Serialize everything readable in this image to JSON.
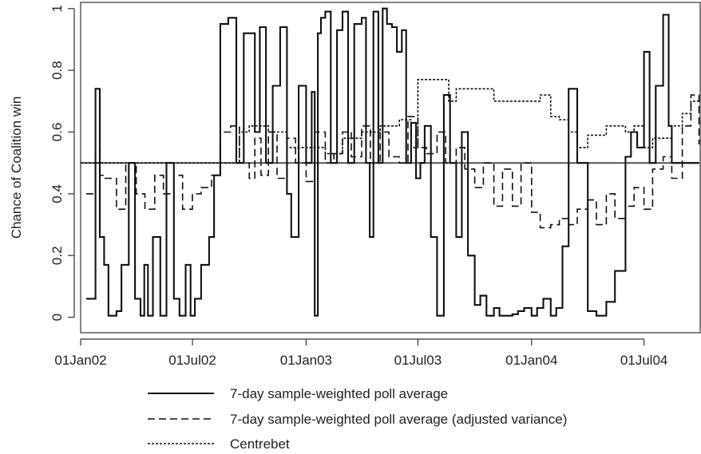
{
  "chart_data": {
    "type": "line",
    "ylabel": "Chance of Coalition win",
    "xlabel": "",
    "ylim": [
      -0.05,
      1.02
    ],
    "xlim": [
      "2002-01-01",
      "2004-09-30"
    ],
    "x_ticks": [
      {
        "date": "2002-01-01",
        "label": "01Jan02"
      },
      {
        "date": "2002-07-01",
        "label": "01Jul02"
      },
      {
        "date": "2003-01-01",
        "label": "01Jan03"
      },
      {
        "date": "2003-07-01",
        "label": "01Jul03"
      },
      {
        "date": "2004-01-01",
        "label": "01Jan04"
      },
      {
        "date": "2004-07-01",
        "label": "01Jul04"
      }
    ],
    "y_ticks": [
      {
        "value": 0,
        "label": "0"
      },
      {
        "value": 0.2,
        "label": "0.2"
      },
      {
        "value": 0.4,
        "label": "0.4"
      },
      {
        "value": 0.6,
        "label": "0.6"
      },
      {
        "value": 0.8,
        "label": "0.8"
      },
      {
        "value": 1,
        "label": "1"
      }
    ],
    "reference_line": 0.5,
    "grid": false,
    "legend_position": "bottom",
    "series": [
      {
        "name": "7-day sample-weighted poll average",
        "style": "solid",
        "x": [
          "2002-01-10",
          "2002-01-25",
          "2002-02-01",
          "2002-02-08",
          "2002-02-15",
          "2002-02-28",
          "2002-03-08",
          "2002-03-20",
          "2002-03-30",
          "2002-04-08",
          "2002-04-14",
          "2002-04-20",
          "2002-04-28",
          "2002-05-10",
          "2002-05-20",
          "2002-06-01",
          "2002-06-10",
          "2002-06-20",
          "2002-06-28",
          "2002-07-05",
          "2002-07-15",
          "2002-07-28",
          "2002-08-05",
          "2002-08-15",
          "2002-08-28",
          "2002-09-10",
          "2002-09-22",
          "2002-10-02",
          "2002-10-10",
          "2002-10-18",
          "2002-10-28",
          "2002-11-08",
          "2002-11-20",
          "2002-12-01",
          "2002-12-08",
          "2002-12-20",
          "2003-01-01",
          "2003-01-10",
          "2003-01-15",
          "2003-01-20",
          "2003-01-25",
          "2003-02-01",
          "2003-02-10",
          "2003-02-20",
          "2003-03-01",
          "2003-03-10",
          "2003-03-20",
          "2003-04-01",
          "2003-04-08",
          "2003-04-14",
          "2003-04-20",
          "2003-04-28",
          "2003-05-05",
          "2003-05-12",
          "2003-05-20",
          "2003-05-28",
          "2003-06-05",
          "2003-06-12",
          "2003-06-20",
          "2003-06-28",
          "2003-07-05",
          "2003-07-12",
          "2003-07-22",
          "2003-08-01",
          "2003-08-12",
          "2003-08-22",
          "2003-09-01",
          "2003-09-10",
          "2003-09-20",
          "2003-10-01",
          "2003-10-10",
          "2003-10-20",
          "2003-11-01",
          "2003-11-10",
          "2003-11-20",
          "2003-12-01",
          "2003-12-10",
          "2003-12-20",
          "2004-01-01",
          "2004-01-10",
          "2004-01-20",
          "2004-02-01",
          "2004-02-10",
          "2004-02-20",
          "2004-03-01",
          "2004-03-15",
          "2004-04-01",
          "2004-04-15",
          "2004-05-01",
          "2004-05-15",
          "2004-06-01",
          "2004-06-10",
          "2004-06-20",
          "2004-07-01",
          "2004-07-10",
          "2004-07-20",
          "2004-08-01",
          "2004-08-10",
          "2004-08-15",
          "2004-08-20",
          "2004-08-25",
          "2004-09-01",
          "2004-09-10",
          "2004-09-20",
          "2004-09-28"
        ],
        "y": [
          0.06,
          0.74,
          0.26,
          0.17,
          0.005,
          0.02,
          0.17,
          0.5,
          0.06,
          0.005,
          0.17,
          0.005,
          0.26,
          0.005,
          0.5,
          0.06,
          0.005,
          0.17,
          0.005,
          0.06,
          0.17,
          0.26,
          0.46,
          0.95,
          0.97,
          0.5,
          0.92,
          0.92,
          0.6,
          0.94,
          0.5,
          0.75,
          0.94,
          0.4,
          0.26,
          0.75,
          0.5,
          0.73,
          0.005,
          0.92,
          0.97,
          0.99,
          0.5,
          0.93,
          0.99,
          0.5,
          0.95,
          0.97,
          0.5,
          0.26,
          0.99,
          0.5,
          1.0,
          0.95,
          0.94,
          0.86,
          0.93,
          0.5,
          0.63,
          0.45,
          0.5,
          0.62,
          0.26,
          0.005,
          0.72,
          0.5,
          0.26,
          0.6,
          0.2,
          0.04,
          0.07,
          0.005,
          0.03,
          0.005,
          0.005,
          0.01,
          0.02,
          0.03,
          0.005,
          0.03,
          0.06,
          0.005,
          0.03,
          0.23,
          0.74,
          0.5,
          0.02,
          0.005,
          0.05,
          0.15,
          0.52,
          0.6,
          0.55,
          0.86,
          0.5,
          0.75,
          0.98,
          0.62,
          0.5,
          0.5,
          0.5,
          0.5,
          0.5,
          0.5,
          0.5
        ]
      },
      {
        "name": "7-day sample-weighted poll average (adjusted variance)",
        "style": "dashed",
        "x": [
          "2002-01-10",
          "2002-01-25",
          "2002-02-01",
          "2002-02-08",
          "2002-02-28",
          "2002-03-15",
          "2002-04-01",
          "2002-04-15",
          "2002-05-01",
          "2002-05-15",
          "2002-06-01",
          "2002-06-15",
          "2002-07-01",
          "2002-07-15",
          "2002-08-01",
          "2002-08-15",
          "2002-09-01",
          "2002-09-15",
          "2002-10-01",
          "2002-10-10",
          "2002-10-20",
          "2002-11-01",
          "2002-11-15",
          "2002-12-01",
          "2002-12-15",
          "2003-01-01",
          "2003-01-15",
          "2003-02-01",
          "2003-02-15",
          "2003-03-01",
          "2003-03-15",
          "2003-04-01",
          "2003-04-15",
          "2003-05-01",
          "2003-05-15",
          "2003-06-01",
          "2003-06-15",
          "2003-07-01",
          "2003-07-15",
          "2003-08-01",
          "2003-08-15",
          "2003-09-01",
          "2003-09-15",
          "2003-10-01",
          "2003-10-15",
          "2003-11-01",
          "2003-11-15",
          "2003-12-01",
          "2003-12-15",
          "2004-01-01",
          "2004-01-15",
          "2004-02-01",
          "2004-02-15",
          "2004-03-01",
          "2004-03-15",
          "2004-04-01",
          "2004-04-15",
          "2004-05-01",
          "2004-05-15",
          "2004-06-01",
          "2004-06-15",
          "2004-07-01",
          "2004-07-15",
          "2004-08-01",
          "2004-08-15",
          "2004-09-01",
          "2004-09-15",
          "2004-09-28"
        ],
        "y": [
          0.4,
          0.54,
          0.46,
          0.45,
          0.35,
          0.5,
          0.4,
          0.35,
          0.46,
          0.4,
          0.46,
          0.35,
          0.4,
          0.42,
          0.46,
          0.6,
          0.62,
          0.5,
          0.45,
          0.58,
          0.46,
          0.6,
          0.45,
          0.58,
          0.5,
          0.44,
          0.6,
          0.5,
          0.53,
          0.6,
          0.52,
          0.62,
          0.5,
          0.6,
          0.52,
          0.5,
          0.65,
          0.55,
          0.53,
          0.6,
          0.5,
          0.55,
          0.48,
          0.42,
          0.5,
          0.36,
          0.48,
          0.36,
          0.5,
          0.34,
          0.29,
          0.3,
          0.32,
          0.3,
          0.35,
          0.38,
          0.3,
          0.4,
          0.32,
          0.36,
          0.42,
          0.35,
          0.48,
          0.52,
          0.45,
          0.62,
          0.72,
          0.56
        ]
      },
      {
        "name": "Centrebet",
        "style": "dotted",
        "x": [
          "2002-01-01",
          "2002-09-10",
          "2002-09-15",
          "2002-10-01",
          "2002-11-01",
          "2002-12-01",
          "2003-01-01",
          "2003-02-01",
          "2003-03-01",
          "2003-04-01",
          "2003-05-01",
          "2003-06-01",
          "2003-06-20",
          "2003-07-01",
          "2003-08-01",
          "2003-08-20",
          "2003-09-01",
          "2003-10-01",
          "2003-11-01",
          "2003-12-01",
          "2004-01-01",
          "2004-01-15",
          "2004-02-01",
          "2004-02-15",
          "2004-03-01",
          "2004-03-15",
          "2004-04-01",
          "2004-04-20",
          "2004-05-01",
          "2004-06-01",
          "2004-06-15",
          "2004-07-01",
          "2004-07-15",
          "2004-08-01",
          "2004-08-15",
          "2004-09-01",
          "2004-09-15",
          "2004-09-28"
        ],
        "y": [
          0.5,
          0.5,
          0.6,
          0.62,
          0.6,
          0.55,
          0.55,
          0.53,
          0.58,
          0.6,
          0.62,
          0.64,
          0.55,
          0.77,
          0.77,
          0.7,
          0.74,
          0.74,
          0.7,
          0.7,
          0.7,
          0.72,
          0.65,
          0.64,
          0.6,
          0.55,
          0.59,
          0.59,
          0.62,
          0.6,
          0.62,
          0.55,
          0.58,
          0.58,
          0.62,
          0.66,
          0.7,
          0.7
        ]
      }
    ]
  }
}
